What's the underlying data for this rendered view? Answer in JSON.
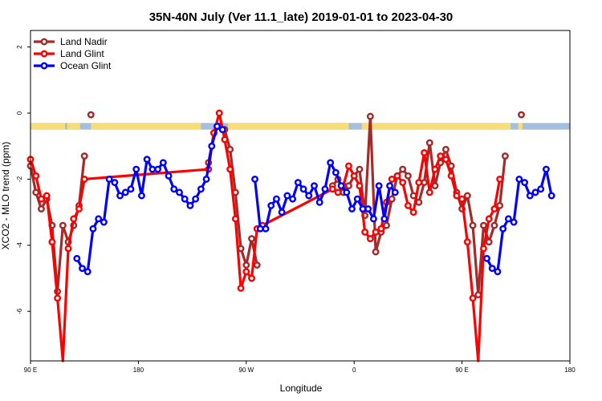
{
  "chart_data": {
    "type": "line",
    "title": "35N-40N July (Ver 11.1_late)   2019-01-01 to 2023-04-30",
    "xlabel": "Longitude",
    "ylabel": "XCO2 - MLO trend (ppm)",
    "xlim": [
      0,
      500
    ],
    "ylim": [
      -7.5,
      2.5
    ],
    "x_ticks": [
      {
        "v": 0,
        "label": "90 E"
      },
      {
        "v": 100,
        "label": "180"
      },
      {
        "v": 200,
        "label": "90 W"
      },
      {
        "v": 300,
        "label": "0"
      },
      {
        "v": 400,
        "label": "90 E"
      },
      {
        "v": 500,
        "label": "180"
      }
    ],
    "y_ticks": [
      {
        "v": 2,
        "label": "2"
      },
      {
        "v": 0,
        "label": "0"
      },
      {
        "v": -2,
        "label": "-2"
      },
      {
        "v": -4,
        "label": "-4"
      },
      {
        "v": -6,
        "label": "-6"
      }
    ],
    "grid": false,
    "legend_position": "top-left",
    "land_ocean_strip": {
      "y_top": -0.3,
      "y_bottom": -0.5,
      "ocean_color": "#a4bedc",
      "land_color": "#f7dc7a",
      "land_ranges": [
        [
          0,
          32
        ],
        [
          34,
          46
        ],
        [
          56,
          158
        ],
        [
          183,
          295
        ],
        [
          307,
          445
        ],
        [
          452,
          456
        ]
      ]
    },
    "series": [
      {
        "name": "Land Nadir",
        "color": "#a52a2a",
        "x": [
          0,
          5,
          10,
          15,
          20,
          25,
          30,
          35,
          40,
          45,
          50,
          55,
          60,
          165,
          170,
          175,
          180,
          185,
          190,
          195,
          200,
          205,
          210,
          215,
          220,
          225,
          230,
          235,
          240,
          245,
          250,
          255,
          260,
          265,
          270,
          275,
          280,
          285,
          290,
          295,
          300,
          305,
          310,
          315,
          320,
          325,
          330,
          335,
          340,
          345,
          350,
          355,
          360,
          365,
          370,
          375,
          380,
          385,
          390,
          395,
          400,
          405,
          410,
          415,
          420,
          425,
          430,
          435,
          440,
          445,
          450,
          455,
          460
        ],
        "y": [
          -1.6,
          -2.4,
          -2.9,
          -2.6,
          -3.4,
          -5.4,
          -3.4,
          -3.9,
          -3.4,
          -2.8,
          -1.3,
          null,
          null,
          -1.5,
          -0.6,
          -0.4,
          -0.5,
          -1.1,
          -2.4,
          -4.1,
          -4.6,
          -3.8,
          -4.6,
          null,
          null,
          null,
          null,
          null,
          null,
          null,
          null,
          null,
          null,
          null,
          null,
          null,
          -2.2,
          -2.0,
          -2.4,
          -2.2,
          -1.9,
          -1.7,
          -3.1,
          -0.1,
          -4.2,
          -3.6,
          -3.4,
          -2.6,
          -1.9,
          -1.7,
          -1.9,
          -2.5,
          -2.7,
          -2.1,
          -0.9,
          -2.2,
          -1.5,
          -1.1,
          -1.6,
          -2.4,
          -2.9,
          -2.5,
          -3.4,
          -5.5,
          -3.4,
          -3.9,
          -3.4,
          -2.8,
          -1.3,
          null,
          null,
          null,
          null
        ],
        "extra_points": [
          {
            "x": 56,
            "y": -0.05
          },
          {
            "x": 455,
            "y": -0.05
          }
        ]
      },
      {
        "name": "Land Glint",
        "color": "#ff0000",
        "x": [
          0,
          5,
          10,
          15,
          20,
          25,
          30,
          35,
          40,
          45,
          50,
          165,
          170,
          175,
          180,
          185,
          190,
          195,
          200,
          205,
          210,
          215,
          280,
          285,
          290,
          295,
          300,
          305,
          310,
          315,
          320,
          325,
          330,
          335,
          340,
          345,
          350,
          355,
          360,
          365,
          370,
          375,
          380,
          385,
          390,
          395,
          400,
          405,
          410,
          415,
          420,
          425,
          430,
          435,
          440,
          445
        ],
        "y": [
          -1.4,
          -1.9,
          -2.6,
          -2.5,
          -3.9,
          -5.6,
          -7.6,
          -4.1,
          -3.2,
          -2.9,
          -2.0,
          -1.7,
          -0.6,
          0.0,
          -0.8,
          -1.7,
          -3.2,
          -5.3,
          -4.8,
          -5.0,
          -3.5,
          -3.4,
          -2.3,
          -2.4,
          -2.2,
          -1.6,
          -1.9,
          -2.2,
          -3.6,
          -3.8,
          -3.6,
          -3.5,
          -2.7,
          -2.0,
          -1.9,
          -2.1,
          -2.8,
          -3.0,
          -2.1,
          -1.2,
          -2.4,
          -1.7,
          -1.3,
          -1.4,
          -1.9,
          -2.5,
          -2.6,
          -3.9,
          -5.6,
          -7.6,
          -4.1,
          -3.2,
          -2.9,
          -2.0,
          null,
          null
        ]
      },
      {
        "name": "Ocean Glint",
        "color": "#0000ff",
        "x": [
          33,
          38,
          43,
          48,
          53,
          58,
          63,
          68,
          73,
          78,
          83,
          88,
          93,
          98,
          103,
          108,
          113,
          118,
          123,
          128,
          133,
          138,
          143,
          148,
          153,
          158,
          163,
          168,
          173,
          178,
          183,
          188,
          193,
          198,
          203,
          208,
          213,
          218,
          223,
          228,
          233,
          238,
          243,
          248,
          253,
          258,
          263,
          268,
          273,
          278,
          283,
          288,
          293,
          298,
          303,
          308,
          313,
          318,
          323,
          328,
          333,
          338,
          343,
          348,
          353,
          358,
          363,
          368,
          373,
          378,
          383,
          388,
          393,
          398,
          403,
          408,
          413,
          418,
          423,
          428,
          433,
          438,
          443,
          448,
          453,
          458,
          463,
          468,
          473,
          478,
          483,
          488,
          493,
          498
        ],
        "y": [
          null,
          null,
          -4.4,
          -4.7,
          -4.8,
          -3.5,
          -3.2,
          -3.3,
          -2.0,
          -2.1,
          -2.5,
          -2.4,
          -2.3,
          -1.7,
          -2.5,
          -1.4,
          -1.7,
          -1.7,
          -1.5,
          -1.9,
          -2.3,
          -2.4,
          -2.6,
          -2.8,
          -2.6,
          -2.3,
          -2.0,
          -1.0,
          -0.4,
          -0.5,
          null,
          null,
          null,
          null,
          null,
          -2.0,
          -3.5,
          -3.5,
          -2.8,
          -2.6,
          -3.0,
          -2.5,
          -2.6,
          -2.1,
          -2.3,
          -2.5,
          -2.2,
          -2.7,
          -2.3,
          -1.5,
          -1.8,
          -2.2,
          -2.4,
          -2.9,
          -2.6,
          -2.9,
          -2.9,
          -3.2,
          -2.2,
          -3.2,
          -2.2,
          -2.4,
          null,
          null,
          null,
          null,
          null,
          null,
          null,
          null,
          null,
          null,
          null,
          null,
          null,
          null,
          null,
          null,
          -4.4,
          -4.7,
          -4.8,
          -3.5,
          -3.2,
          -3.3,
          -2.0,
          -2.1,
          -2.5,
          -2.4,
          -2.3,
          -1.7,
          -2.5,
          null,
          null,
          null
        ]
      }
    ]
  }
}
